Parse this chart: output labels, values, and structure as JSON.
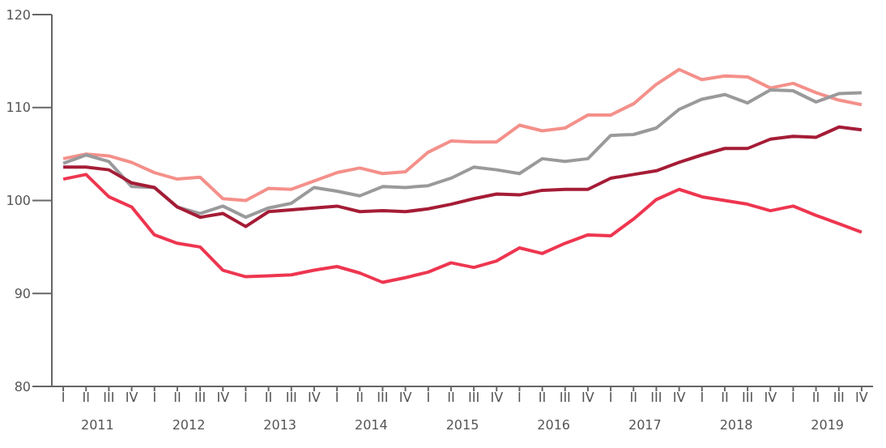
{
  "chart_data": {
    "type": "line",
    "categories": [
      "I",
      "II",
      "III",
      "IV",
      "I",
      "II",
      "III",
      "IV",
      "I",
      "II",
      "III",
      "IV",
      "I",
      "II",
      "III",
      "IV",
      "I",
      "II",
      "III",
      "IV",
      "I",
      "II",
      "III",
      "IV",
      "I",
      "II",
      "III",
      "IV",
      "I",
      "II",
      "III",
      "IV",
      "I",
      "II",
      "III",
      "IV"
    ],
    "annotations": [
      "2011",
      "2012",
      "2013",
      "2014",
      "2015",
      "2016",
      "2017",
      "2018",
      "2019"
    ],
    "series": [
      {
        "color": "#f4908a",
        "values": [
          104.5,
          105.0,
          104.8,
          104.1,
          103.0,
          102.3,
          102.5,
          100.2,
          100.0,
          101.3,
          101.2,
          102.1,
          103.0,
          103.5,
          102.9,
          103.1,
          105.2,
          106.4,
          106.3,
          106.3,
          108.1,
          107.5,
          107.8,
          109.2,
          109.2,
          110.4,
          112.5,
          114.1,
          113.0,
          113.4,
          113.3,
          112.1,
          112.6,
          111.6,
          110.8,
          110.3
        ]
      },
      {
        "color": "#9a9a9c",
        "values": [
          104.0,
          104.9,
          104.2,
          101.5,
          101.4,
          99.3,
          98.6,
          99.4,
          98.2,
          99.2,
          99.7,
          101.4,
          101.0,
          100.5,
          101.5,
          101.4,
          101.6,
          102.4,
          103.6,
          103.3,
          102.9,
          104.5,
          104.2,
          104.5,
          107.0,
          107.1,
          107.8,
          109.8,
          110.9,
          111.4,
          110.5,
          111.9,
          111.8,
          110.6,
          111.5,
          111.6
        ]
      },
      {
        "color": "#a51c36",
        "values": [
          103.6,
          103.6,
          103.3,
          101.9,
          101.4,
          99.3,
          98.2,
          98.6,
          97.2,
          98.8,
          99.0,
          99.2,
          99.4,
          98.8,
          98.9,
          98.8,
          99.1,
          99.6,
          100.2,
          100.7,
          100.6,
          101.1,
          101.2,
          101.2,
          102.4,
          102.8,
          103.2,
          104.1,
          104.9,
          105.6,
          105.6,
          106.6,
          106.9,
          106.8,
          107.9,
          107.6
        ]
      },
      {
        "color": "#ee3650",
        "values": [
          102.3,
          102.8,
          100.4,
          99.3,
          96.3,
          95.4,
          95.0,
          92.5,
          91.8,
          91.9,
          92.0,
          92.5,
          92.9,
          92.2,
          91.2,
          91.7,
          92.3,
          93.3,
          92.8,
          93.5,
          94.9,
          94.3,
          95.4,
          96.3,
          96.2,
          98.0,
          100.1,
          101.2,
          100.4,
          100.0,
          99.6,
          98.9,
          99.4,
          98.4,
          97.5,
          96.6
        ]
      }
    ],
    "ylim": [
      80,
      120
    ],
    "yticks": [
      80,
      90,
      100,
      110,
      120
    ],
    "grid": false,
    "legend": false,
    "marker": "none",
    "line_style": "solid"
  }
}
